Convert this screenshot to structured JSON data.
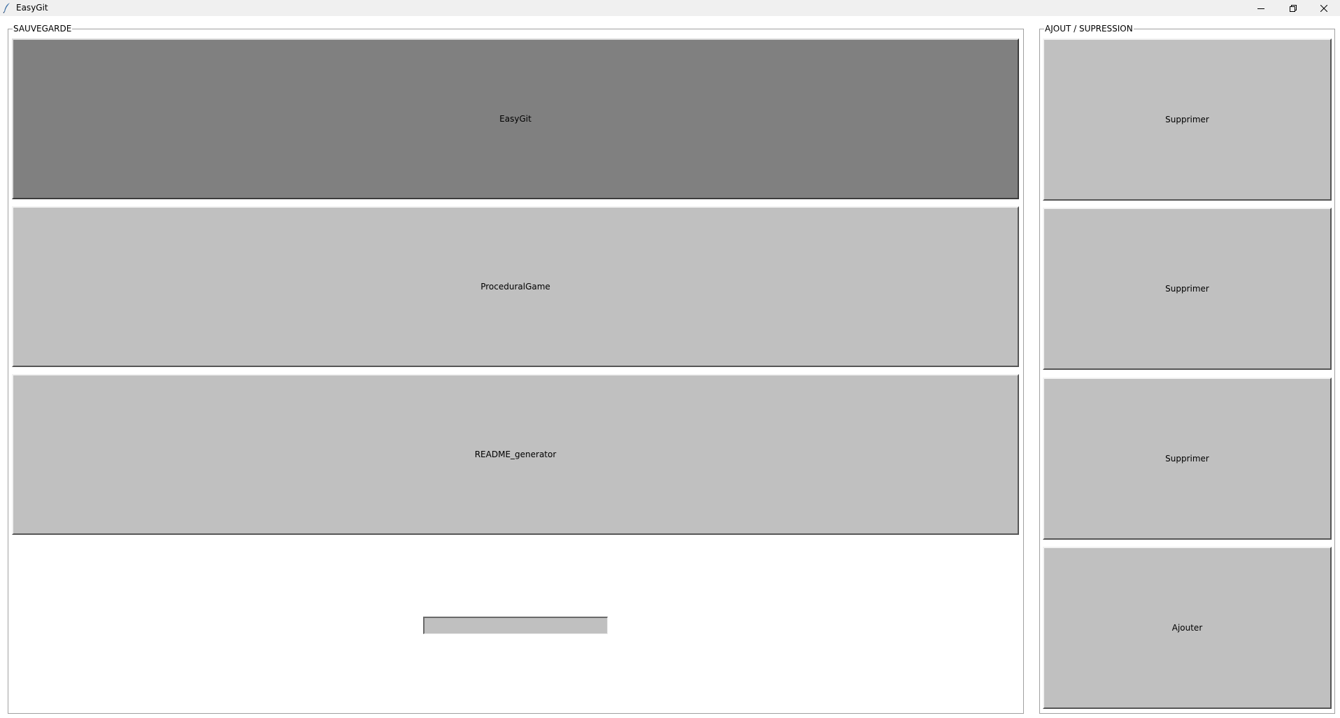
{
  "window": {
    "title": "EasyGit",
    "icon": "feather-icon",
    "controls": [
      "minimize-icon",
      "restore-icon",
      "close-icon"
    ]
  },
  "sauvegarde": {
    "label": "SAUVEGARDE",
    "repos": [
      {
        "name": "EasyGit",
        "active": true
      },
      {
        "name": "ProceduralGame",
        "active": false
      },
      {
        "name": "README_generator",
        "active": false
      }
    ],
    "entry_value": ""
  },
  "ajout_suppression": {
    "label": "AJOUT / SUPRESSION",
    "buttons": [
      "Supprimer",
      "Supprimer",
      "Supprimer",
      "Ajouter"
    ]
  },
  "colors": {
    "button_face": "#c0c0c0",
    "button_active": "#808080",
    "titlebar": "#f0f0f0"
  }
}
